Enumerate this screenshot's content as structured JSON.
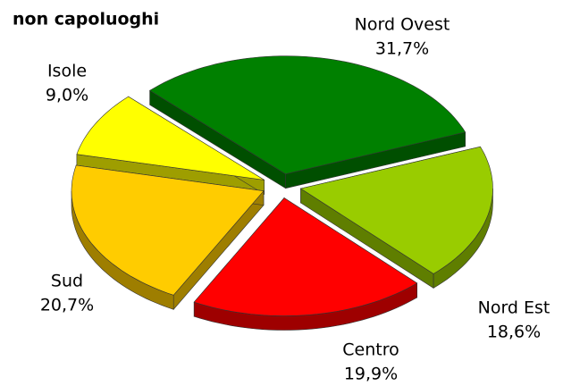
{
  "chart_data": {
    "type": "pie",
    "title": "non capoluoghi",
    "categories": [
      "Nord Ovest",
      "Nord Est",
      "Centro",
      "Sud",
      "Isole"
    ],
    "values": [
      31.7,
      18.6,
      19.9,
      20.7,
      9.0
    ],
    "value_labels": [
      "31,7%",
      "18,6%",
      "19,9%",
      "20,7%",
      "9,0%"
    ],
    "colors": [
      "#008000",
      "#99cc00",
      "#ff0000",
      "#ffcc00",
      "#ffff00"
    ]
  }
}
